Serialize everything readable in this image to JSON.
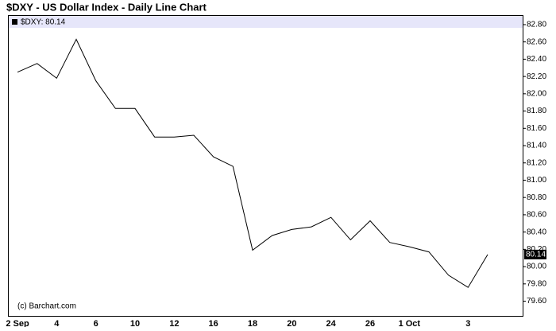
{
  "chart_data": {
    "type": "line",
    "title": "$DXY - US Dollar Index - Daily Line Chart",
    "annotation": "(c) Barchart.com",
    "categories": [
      "2 Sep",
      null,
      "4",
      null,
      "6",
      null,
      "10",
      null,
      "12",
      null,
      "16",
      null,
      "18",
      null,
      "20",
      null,
      "24",
      null,
      "26",
      null,
      "1 Oct",
      null,
      null,
      "3",
      null
    ],
    "series": [
      {
        "name": "$DXY: 80.14",
        "color": "#000000",
        "values": [
          82.25,
          82.35,
          82.18,
          82.63,
          82.15,
          81.83,
          81.83,
          81.5,
          81.5,
          81.52,
          81.27,
          81.16,
          80.19,
          80.36,
          80.43,
          80.46,
          80.57,
          80.31,
          80.53,
          80.28,
          80.23,
          80.17,
          79.9,
          79.76,
          80.14
        ]
      }
    ],
    "ylim": [
      79.43,
      82.91
    ],
    "yticks": [
      {
        "value": 79.6,
        "label": "79.60"
      },
      {
        "value": 79.8,
        "label": "79.80"
      },
      {
        "value": 80.0,
        "label": "80.00"
      },
      {
        "value": 80.2,
        "label": "80.20"
      },
      {
        "value": 80.4,
        "label": "80.40"
      },
      {
        "value": 80.6,
        "label": "80.60"
      },
      {
        "value": 80.8,
        "label": "80.80"
      },
      {
        "value": 81.0,
        "label": "81.00"
      },
      {
        "value": 81.2,
        "label": "81.20"
      },
      {
        "value": 81.4,
        "label": "81.40"
      },
      {
        "value": 81.6,
        "label": "81.60"
      },
      {
        "value": 81.8,
        "label": "81.80"
      },
      {
        "value": 82.0,
        "label": "82.00"
      },
      {
        "value": 82.2,
        "label": "82.20"
      },
      {
        "value": 82.4,
        "label": "82.40"
      },
      {
        "value": 82.6,
        "label": "82.60"
      },
      {
        "value": 82.8,
        "label": "82.80"
      }
    ]
  }
}
